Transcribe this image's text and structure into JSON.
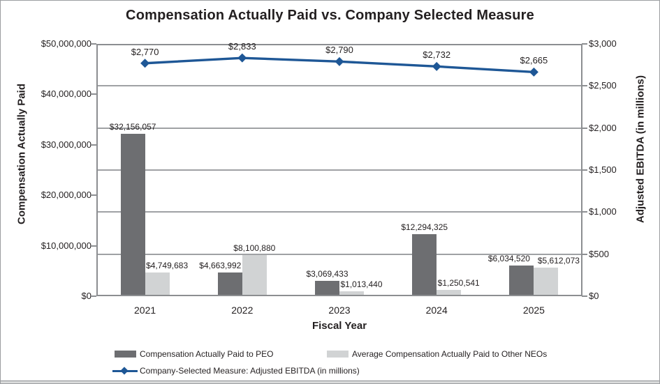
{
  "title": "Compensation Actually Paid vs. Company Selected Measure",
  "chart_data": {
    "type": "combo-bar-line",
    "title": "Compensation Actually Paid vs. Company Selected Measure",
    "categories": [
      "2021",
      "2022",
      "2023",
      "2024",
      "2025"
    ],
    "bar_series": [
      {
        "name": "Compensation Actually Paid to PEO",
        "color": "#6d6e71",
        "values": [
          32156057,
          4663992,
          3069433,
          12294325,
          6034520
        ],
        "labels": [
          "$32,156,057",
          "$4,663,992",
          "$3,069,433",
          "$12,294,325",
          "$6,034,520"
        ]
      },
      {
        "name": "Average Compensation Actually Paid to Other NEOs",
        "color": "#d1d3d4",
        "values": [
          4749683,
          8100880,
          1013440,
          1250541,
          5612073
        ],
        "labels": [
          "$4,749,683",
          "$8,100,880",
          "$1,013,440",
          "$1,250,541",
          "$5,612,073"
        ]
      }
    ],
    "line_series": {
      "name": "Company-Selected Measure: Adjusted EBITDA (in millions)",
      "color": "#1e5796",
      "values": [
        2770,
        2833,
        2790,
        2732,
        2665
      ],
      "labels": [
        "$2,770",
        "$2,833",
        "$2,790",
        "$2,732",
        "$2,665"
      ]
    },
    "left_axis": {
      "title": "Compensation Actually Paid",
      "min": 0,
      "max": 50000000,
      "tick_labels": [
        "$0",
        "$10,000,000",
        "$20,000,000",
        "$30,000,000",
        "$40,000,000",
        "$50,000,000"
      ]
    },
    "right_axis": {
      "title": "Adjusted EBITDA (in millions)",
      "min": 0,
      "max": 3000,
      "tick_labels": [
        "$0",
        "$500",
        "$1,000",
        "$1,500",
        "$2,000",
        "$2,500",
        "$3,000"
      ]
    },
    "x_axis": {
      "title": "Fiscal Year"
    },
    "grid": true,
    "legend_position": "bottom"
  },
  "colors": {
    "peo_bar": "#6d6e71",
    "neo_bar": "#d1d3d4",
    "line": "#1e5796",
    "gridline": "#9fa1a4",
    "axis_frame": "#8c8e91",
    "text": "#231f20"
  }
}
